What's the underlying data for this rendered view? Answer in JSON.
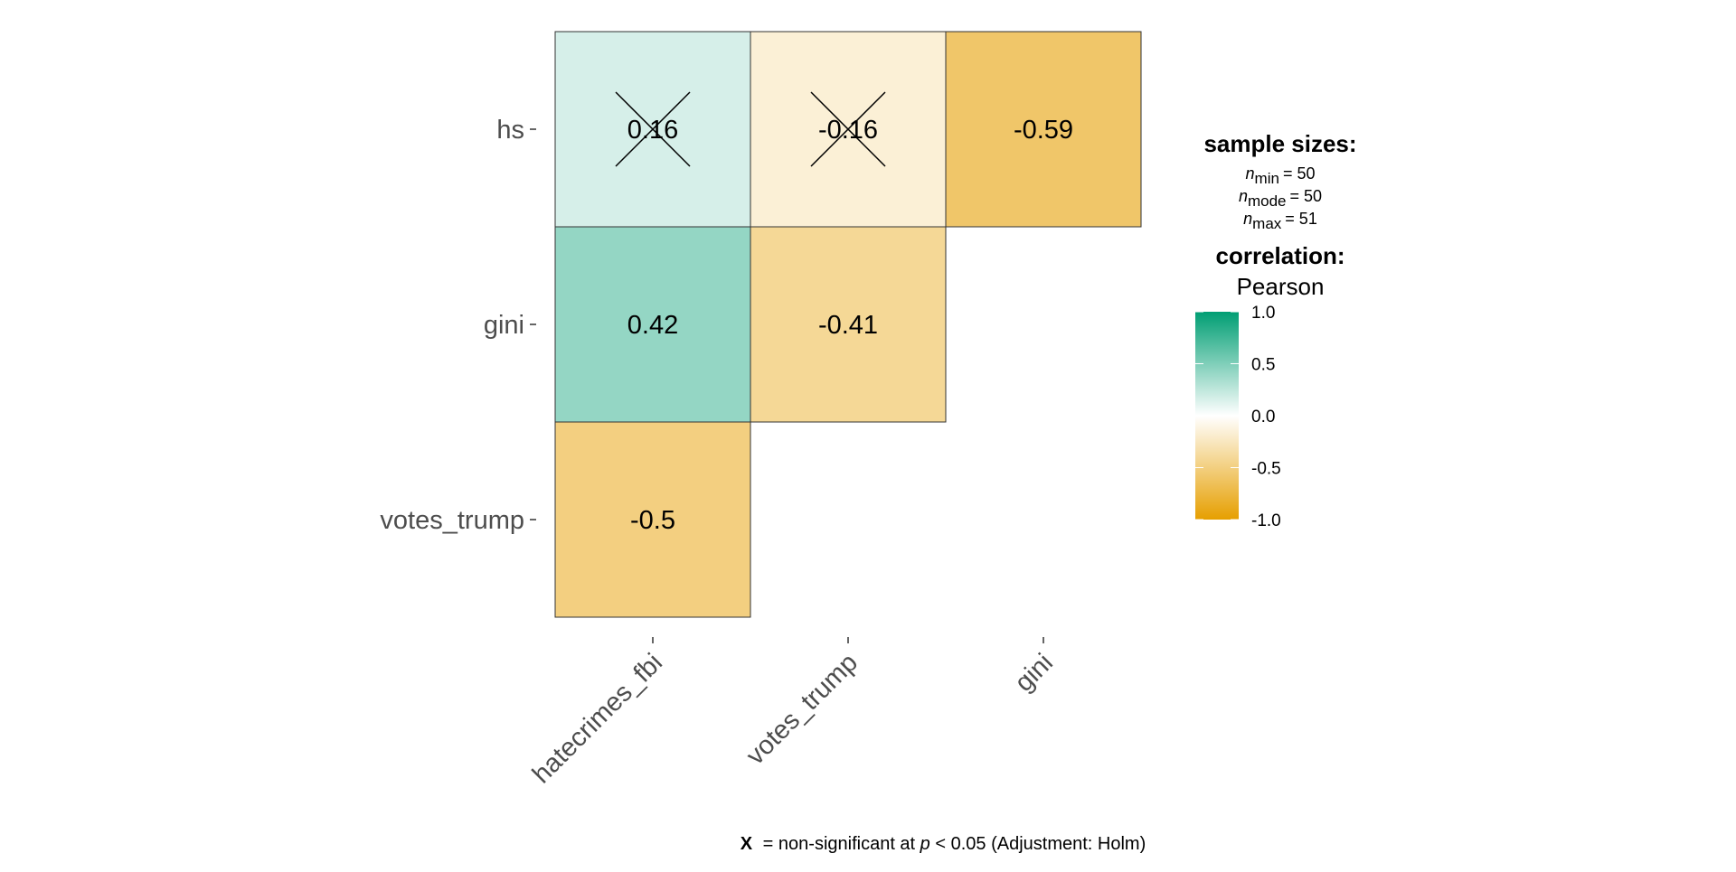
{
  "chart_data": {
    "type": "heatmap",
    "method_title": "correlation:",
    "method": "Pearson",
    "rows": [
      "hs",
      "gini",
      "votes_trump"
    ],
    "columns": [
      "hatecrimes_fbi",
      "votes_trump",
      "gini"
    ],
    "cells": [
      {
        "row": "hs",
        "col": "hatecrimes_fbi",
        "value": 0.16,
        "label": "0.16",
        "significant": false
      },
      {
        "row": "hs",
        "col": "votes_trump",
        "value": -0.16,
        "label": "-0.16",
        "significant": false
      },
      {
        "row": "hs",
        "col": "gini",
        "value": -0.59,
        "label": "-0.59",
        "significant": true
      },
      {
        "row": "gini",
        "col": "hatecrimes_fbi",
        "value": 0.42,
        "label": "0.42",
        "significant": true
      },
      {
        "row": "gini",
        "col": "votes_trump",
        "value": -0.41,
        "label": "-0.41",
        "significant": true
      },
      {
        "row": "votes_trump",
        "col": "hatecrimes_fbi",
        "value": -0.5,
        "label": "-0.5",
        "significant": true
      }
    ],
    "sample_sizes": {
      "title": "sample sizes:",
      "items": [
        {
          "sub": "min",
          "value": "= 50"
        },
        {
          "sub": "mode",
          "value": "= 50"
        },
        {
          "sub": "max",
          "value": "= 51"
        }
      ]
    },
    "colorbar": {
      "range": [
        -1.0,
        1.0
      ],
      "ticks": [
        "1.0",
        "0.5",
        "0.0",
        "-0.5",
        "-1.0"
      ],
      "colors": {
        "low": "#E69F00",
        "mid": "#FFFFFF",
        "high": "#009E73"
      }
    },
    "caption": {
      "mark": "X",
      "pre": "= non-significant at ",
      "p": "p",
      "post": " < 0.05 (Adjustment: Holm)"
    }
  }
}
